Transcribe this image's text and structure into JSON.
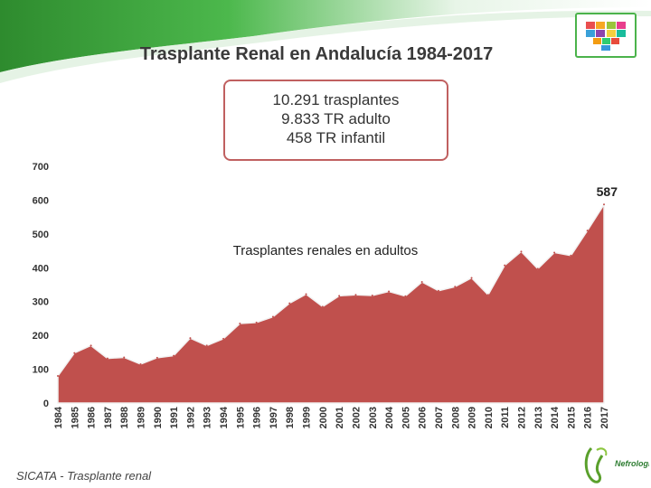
{
  "slide": {
    "title": "Trasplante Renal en Andalucía 1984-2017",
    "summary": [
      "10.291 trasplantes",
      "9.833 TR adulto",
      "458 TR infantil"
    ],
    "footer": "SICATA - Trasplante renal",
    "society_logo_text": "Nefrología"
  },
  "colors": {
    "area": "#c0504d",
    "band": "#3aa53a",
    "grid": "#d9d9d9"
  },
  "chart_data": {
    "type": "area",
    "annotation": "Trasplantes renales en adultos",
    "end_label": "587",
    "x": [
      "1984",
      "1985",
      "1986",
      "1987",
      "1988",
      "1989",
      "1990",
      "1991",
      "1992",
      "1993",
      "1994",
      "1995",
      "1996",
      "1997",
      "1998",
      "1999",
      "2000",
      "2001",
      "2002",
      "2003",
      "2004",
      "2005",
      "2006",
      "2007",
      "2008",
      "2009",
      "2010",
      "2011",
      "2012",
      "2013",
      "2014",
      "2015",
      "2016",
      "2017"
    ],
    "values": [
      80,
      148,
      170,
      132,
      135,
      115,
      134,
      140,
      192,
      170,
      190,
      235,
      238,
      255,
      295,
      322,
      285,
      317,
      320,
      318,
      330,
      316,
      358,
      332,
      344,
      370,
      320,
      407,
      448,
      397,
      445,
      436,
      510,
      587
    ],
    "yticks": [
      0,
      100,
      200,
      300,
      400,
      500,
      600,
      700
    ],
    "ylim": [
      0,
      700
    ]
  }
}
